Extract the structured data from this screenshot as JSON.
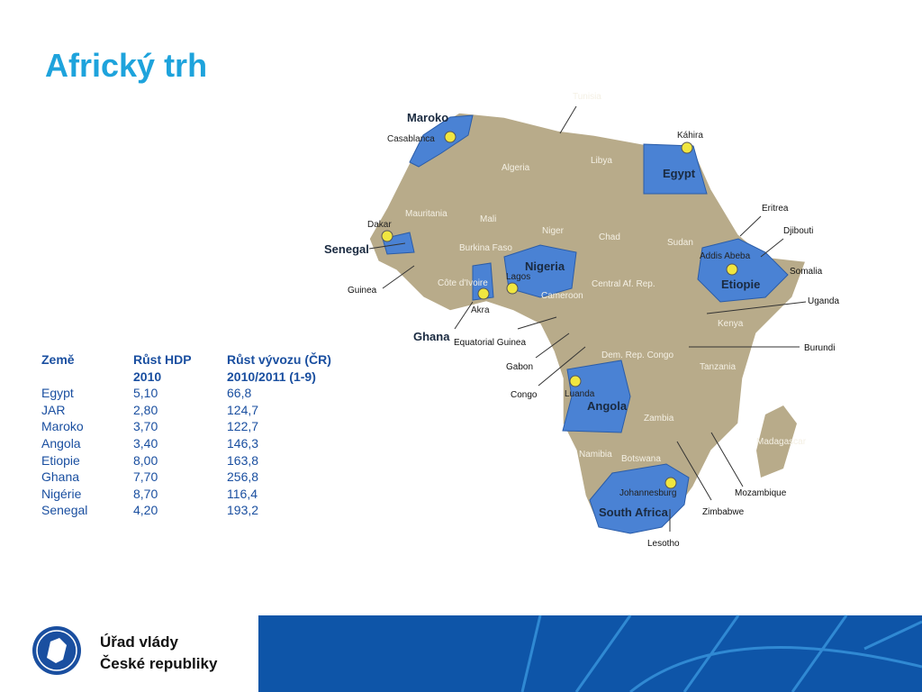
{
  "title": "Africký trh",
  "table": {
    "headers": [
      [
        "Země"
      ],
      [
        "Růst HDP",
        "2010"
      ],
      [
        "Růst vývozu (ČR)",
        "2010/2011 (1-9)"
      ]
    ],
    "rows": [
      [
        "Egypt",
        "5,10",
        "66,8"
      ],
      [
        "JAR",
        "2,80",
        "124,7"
      ],
      [
        "Maroko",
        "3,70",
        "122,7"
      ],
      [
        "Angola",
        "3,40",
        "146,3"
      ],
      [
        "Etiopie",
        "8,00",
        "163,8"
      ],
      [
        "Ghana",
        "7,70",
        "256,8"
      ],
      [
        "Nigérie",
        "8,70",
        "116,4"
      ],
      [
        "Senegal",
        "4,20",
        "193,2"
      ]
    ]
  },
  "map": {
    "highlighted": [
      "Maroko",
      "Senegal",
      "Ghana",
      "Nigeria",
      "Egypt",
      "Etiopie",
      "Angola",
      "South Africa"
    ],
    "cities": [
      "Casablanca",
      "Dakar",
      "Akra",
      "Lagos",
      "Káhira",
      "Addis Abeba",
      "Luanda",
      "Johannesburg"
    ],
    "countries": [
      "Tunisia",
      "Algeria",
      "Libya",
      "Mauritania",
      "Mali",
      "Niger",
      "Chad",
      "Sudan",
      "Eritrea",
      "Djibouti",
      "Somalia",
      "Uganda",
      "Kenya",
      "Burundi",
      "Tanzania",
      "Dem. Rep. Congo",
      "Central Af. Rep.",
      "Cameroon",
      "Burkina Faso",
      "Côte d'Ivoire",
      "Guinea",
      "Equatorial Guinea",
      "Gabon",
      "Congo",
      "Zambia",
      "Namibia",
      "Botswana",
      "Zimbabwe",
      "Mozambique",
      "Madagascar",
      "Lesotho"
    ]
  },
  "footer": {
    "line1": "Úřad vlády",
    "line2": "České republiky"
  }
}
